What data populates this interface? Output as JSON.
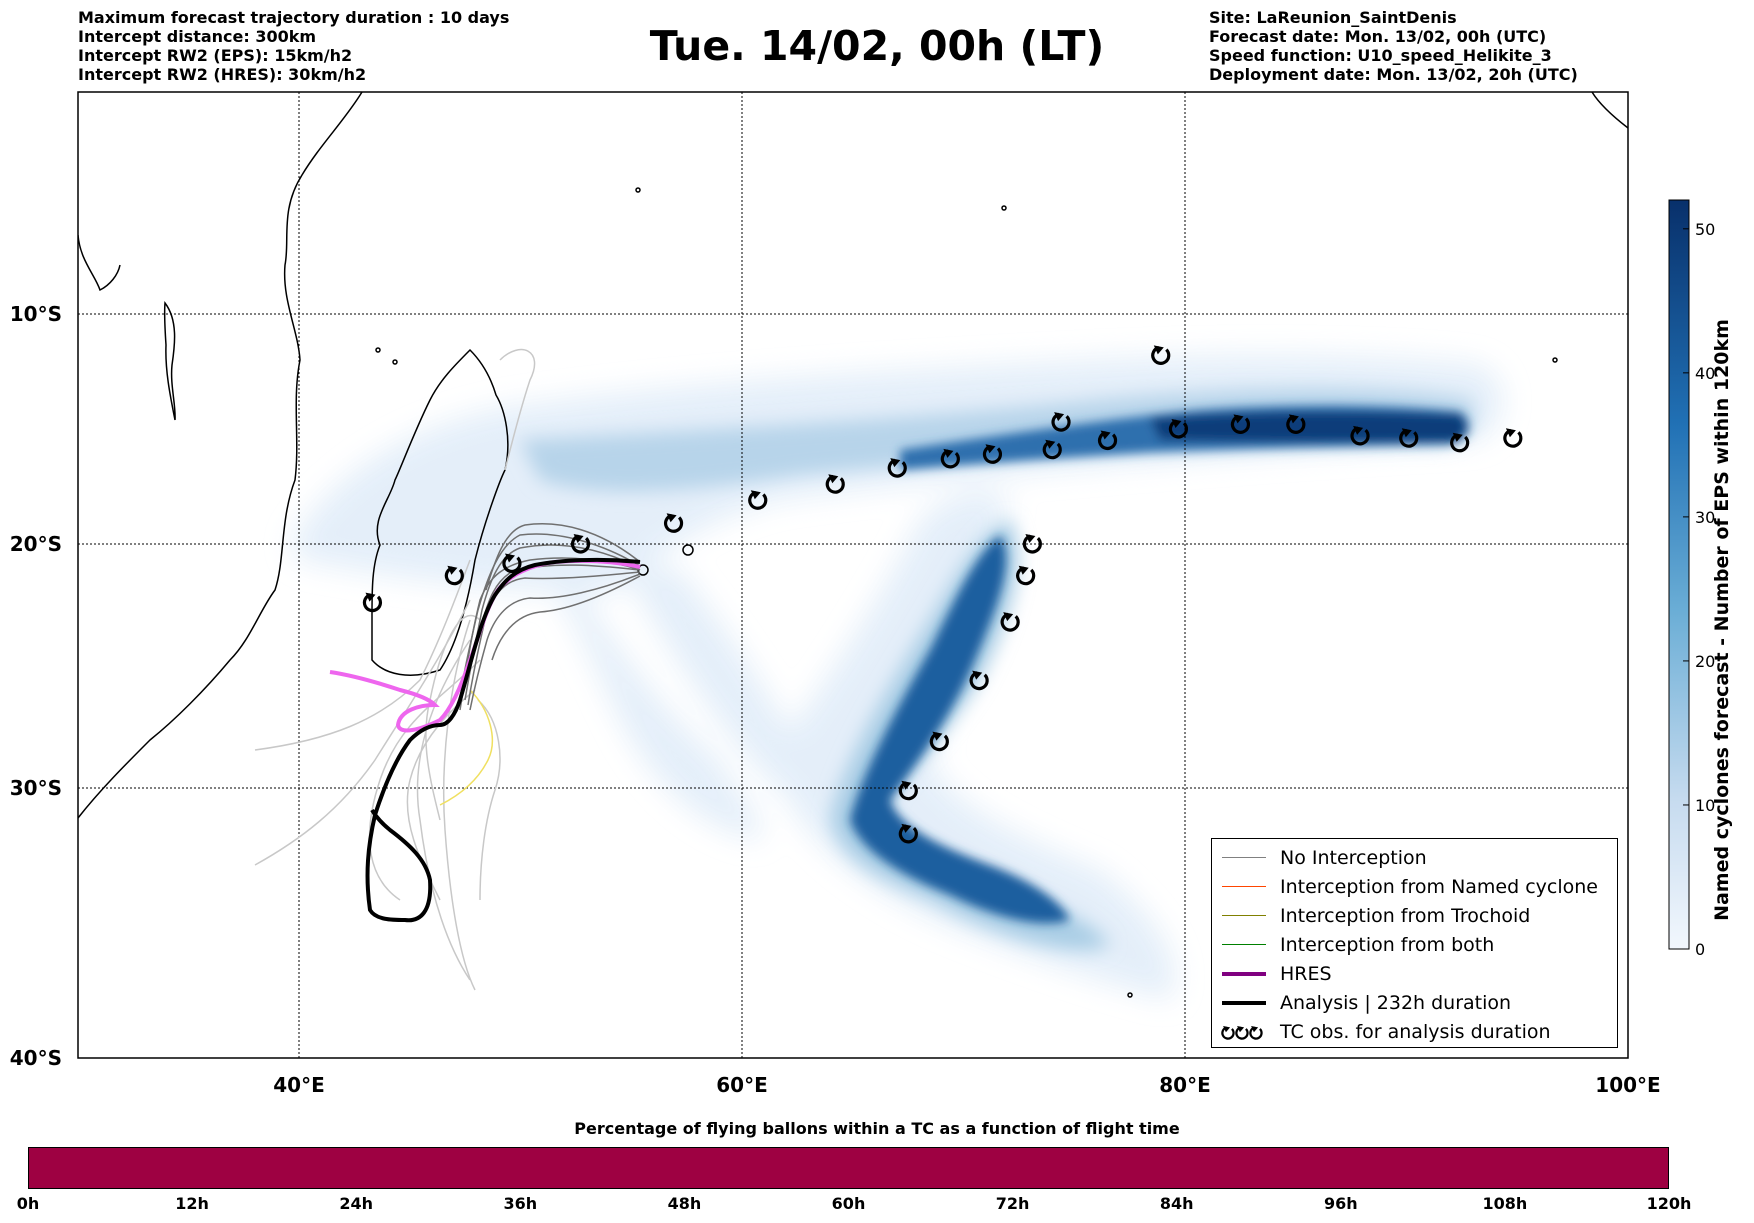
{
  "header": {
    "left": [
      "Maximum forecast trajectory duration : 10 days",
      "Intercept distance: 300km",
      "Intercept RW2 (EPS):  15km/h2",
      "Intercept RW2 (HRES): 30km/h2"
    ],
    "right": [
      "Site: LaReunion_SaintDenis",
      "Forecast date: Mon. 13/02, 00h (UTC)",
      "Speed function: U10_speed_Helikite_3",
      "Deployment date: Mon. 13/02, 20h (UTC)"
    ],
    "title": "Tue. 14/02, 00h (LT)"
  },
  "map": {
    "lat_labels": [
      "10°S",
      "20°S",
      "30°S",
      "40°S"
    ],
    "lon_labels": [
      "40°E",
      "60°E",
      "80°E",
      "100°E"
    ],
    "lat_values": [
      -10,
      -20,
      -30,
      -40
    ],
    "lon_values": [
      40,
      60,
      80,
      100
    ],
    "extent": {
      "lon_min": 30,
      "lon_max": 100,
      "lat_min": -40,
      "lat_max": -1
    },
    "tc_obs_symbol": "cyclone-icon",
    "tc_tracks": [
      {
        "name": "track-1",
        "points": [
          [
            43.3,
            -22.4
          ],
          [
            47.0,
            -21.3
          ],
          [
            49.6,
            -20.8
          ],
          [
            52.7,
            -20.0
          ],
          [
            56.9,
            -19.1
          ],
          [
            60.7,
            -18.1
          ],
          [
            64.2,
            -17.4
          ],
          [
            67.0,
            -16.7
          ],
          [
            69.4,
            -16.3
          ],
          [
            71.3,
            -16.1
          ],
          [
            74.0,
            -15.9
          ],
          [
            76.5,
            -15.5
          ],
          [
            79.7,
            -15.0
          ],
          [
            82.5,
            -14.8
          ],
          [
            85.0,
            -14.8
          ],
          [
            87.9,
            -15.3
          ],
          [
            90.1,
            -15.4
          ],
          [
            92.4,
            -15.6
          ],
          [
            94.8,
            -15.4
          ]
        ]
      },
      {
        "name": "track-2",
        "points": [
          [
            74.4,
            -14.7
          ],
          [
            78.9,
            -11.8
          ]
        ]
      },
      {
        "name": "track-3",
        "points": [
          [
            73.1,
            -20.0
          ],
          [
            72.8,
            -21.3
          ],
          [
            72.1,
            -23.2
          ],
          [
            70.7,
            -25.6
          ],
          [
            68.9,
            -28.1
          ],
          [
            67.5,
            -30.1
          ],
          [
            67.5,
            -31.7
          ]
        ]
      }
    ]
  },
  "legend": {
    "items": [
      {
        "label": "No Interception",
        "color": "#808080",
        "width": 1.5,
        "kind": "line"
      },
      {
        "label": "Interception from Named cyclone",
        "color": "#ff4500",
        "width": 1.5,
        "kind": "line"
      },
      {
        "label": "Interception from Trochoid",
        "color": "#808000",
        "width": 1.5,
        "kind": "line"
      },
      {
        "label": "Interception from both",
        "color": "#008000",
        "width": 1.5,
        "kind": "line"
      },
      {
        "label": "HRES",
        "color": "#800080",
        "width": 4,
        "kind": "line"
      },
      {
        "label": "Analysis | 232h duration",
        "color": "#000000",
        "width": 4,
        "kind": "line"
      },
      {
        "label": "TC obs. for analysis duration",
        "color": "#000000",
        "kind": "symbols"
      }
    ]
  },
  "colorbar_v": {
    "label": "Named cyclones forecast - Number of EPS within 120km",
    "ticks": [
      "0",
      "10",
      "20",
      "30",
      "40",
      "50"
    ],
    "tick_values": [
      0,
      10,
      20,
      30,
      40,
      50
    ],
    "max": 52,
    "color_low": "#e6f0fa",
    "color_high": "#08306b"
  },
  "colorbar_h": {
    "caption": "Percentage of flying ballons within a TC as a function of flight time",
    "ticks": [
      "0h",
      "12h",
      "24h",
      "36h",
      "48h",
      "60h",
      "72h",
      "84h",
      "96h",
      "108h",
      "120h"
    ],
    "fill_color": "#9e0142"
  },
  "colors": {
    "hres": "#ee66ee",
    "analysis": "#000000",
    "eps_gray": "#707070",
    "eps_light": "#c8c8c8",
    "yellow_track": "#f0e060"
  }
}
